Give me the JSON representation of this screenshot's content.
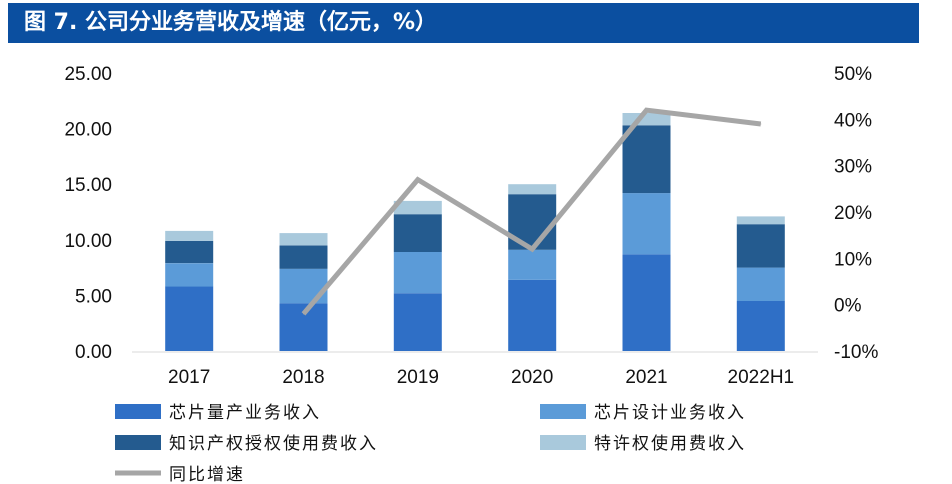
{
  "title": "图 7. 公司分业务营收及增速（亿元，%）",
  "colors": {
    "title_bg": "#0b4fa0",
    "chip_product": "#2f6fc6",
    "chip_design": "#5b9bd8",
    "ip_license": "#245b8f",
    "royalty": "#a9c9dc",
    "growth_line": "#a6a6a6"
  },
  "chart_data": {
    "type": "bar",
    "stacked": true,
    "categories": [
      "2017",
      "2018",
      "2019",
      "2020",
      "2021",
      "2022H1"
    ],
    "series": [
      {
        "name": "芯片量产业务收入",
        "values": [
          5.8,
          4.3,
          5.2,
          6.4,
          8.7,
          4.5
        ]
      },
      {
        "name": "芯片设计业务收入",
        "values": [
          2.1,
          3.1,
          3.7,
          2.7,
          5.5,
          3.0
        ]
      },
      {
        "name": "知识产权授权使用费收入",
        "values": [
          2.0,
          2.1,
          3.4,
          5.0,
          6.1,
          3.9
        ]
      },
      {
        "name": "特许权使用费收入",
        "values": [
          0.9,
          1.1,
          1.2,
          0.9,
          1.1,
          0.7
        ]
      }
    ],
    "line_series": {
      "name": "同比增速",
      "x": [
        "2018",
        "2019",
        "2020",
        "2021",
        "2022H1"
      ],
      "values": [
        -2,
        27,
        12,
        42,
        39
      ]
    },
    "left_axis": {
      "ylim": [
        0,
        25
      ],
      "ticks": [
        "0.00",
        "5.00",
        "10.00",
        "15.00",
        "20.00",
        "25.00"
      ]
    },
    "right_axis": {
      "ylim": [
        -10,
        50
      ],
      "ticks": [
        "-10%",
        "0%",
        "10%",
        "20%",
        "30%",
        "40%",
        "50%"
      ]
    },
    "legend": {
      "placement": "bottom"
    },
    "grid": false
  }
}
